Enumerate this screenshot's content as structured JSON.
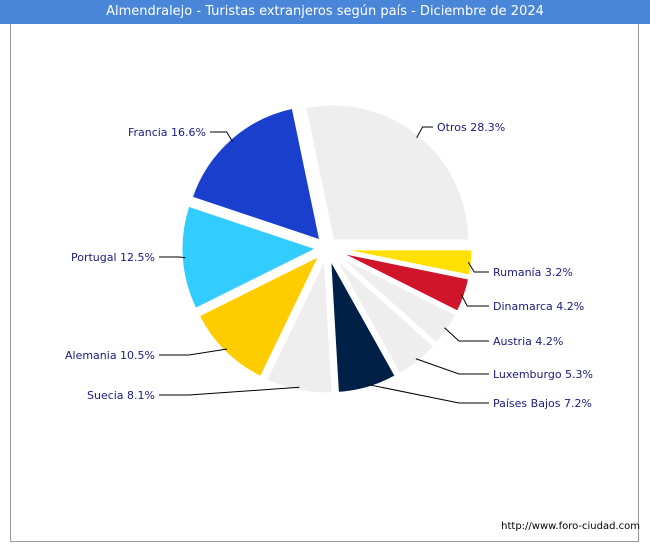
{
  "chart_data": {
    "type": "pie",
    "title": "Almendralejo - Turistas extranjeros según país - Diciembre de 2024",
    "slices": [
      {
        "label": "Otros",
        "value": 28.3,
        "display": "Otros 28.3%",
        "color": "#eeeeee"
      },
      {
        "label": "Rumanía",
        "value": 3.2,
        "display": "Rumanía 3.2%",
        "color": "#ffe000"
      },
      {
        "label": "Dinamarca",
        "value": 4.2,
        "display": "Dinamarca 4.2%",
        "color": "#d0142a"
      },
      {
        "label": "Austria",
        "value": 4.2,
        "display": "Austria 4.2%",
        "color": "#eeeeee"
      },
      {
        "label": "Luxemburgo",
        "value": 5.3,
        "display": "Luxemburgo 5.3%",
        "color": "#eeeeee"
      },
      {
        "label": "Países Bajos",
        "value": 7.2,
        "display": "Países Bajos 7.2%",
        "color": "#002048"
      },
      {
        "label": "Suecia",
        "value": 8.1,
        "display": "Suecia 8.1%",
        "color": "#eeeeee"
      },
      {
        "label": "Alemania",
        "value": 10.5,
        "display": "Alemania 10.5%",
        "color": "#ffcc00"
      },
      {
        "label": "Portugal",
        "value": 12.5,
        "display": "Portugal 12.5%",
        "color": "#33ccff"
      },
      {
        "label": "Francia",
        "value": 16.6,
        "display": "Francia 16.6%",
        "color": "#1a3fcc"
      }
    ]
  },
  "footer": {
    "source": "http://www.foro-ciudad.com"
  }
}
